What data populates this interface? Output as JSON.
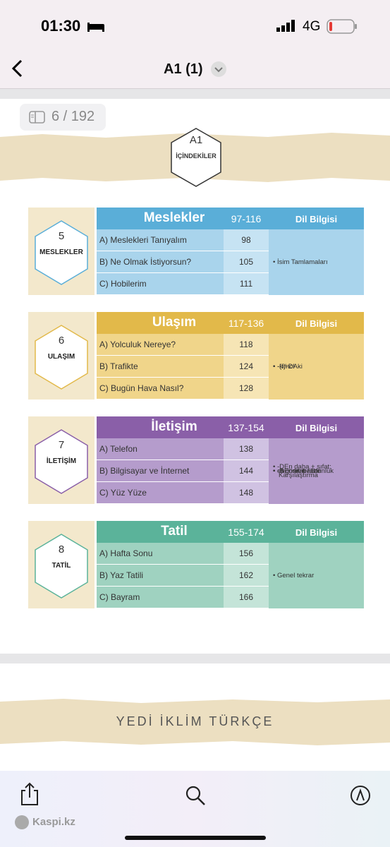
{
  "status_bar": {
    "time": "01:30",
    "network": "4G"
  },
  "nav": {
    "title": "A1 (1)"
  },
  "page_counter": "6 / 192",
  "header": {
    "level": "A1",
    "title": "İÇİNDEKİLER"
  },
  "units": [
    {
      "number": "5",
      "name": "MESLEKLER",
      "title": "Meslekler",
      "pages": "97-116",
      "grammar_title": "Dil Bilgisi",
      "lessons": [
        {
          "name": "A) Meslekleri Tanıyalım",
          "page": "98"
        },
        {
          "name": "B) Ne Olmak İstiyorsun?",
          "page": "105"
        },
        {
          "name": "C) Hobilerim",
          "page": "111"
        }
      ],
      "grammar": [
        "İsim Tamlamaları"
      ]
    },
    {
      "number": "6",
      "name": "ULAŞIM",
      "title": "Ulaşım",
      "pages": "117-136",
      "grammar_title": "Dil Bilgisi",
      "lessons": [
        {
          "name": "A) Yolculuk Nereye?",
          "page": "118"
        },
        {
          "name": "B) Trafikte",
          "page": "124"
        },
        {
          "name": "C) Bugün Hava Nasıl?",
          "page": "128"
        }
      ],
      "grammar": [
        "-ki/-DAki",
        "-(I)ncI"
      ]
    },
    {
      "number": "7",
      "name": "İLETİŞİM",
      "title": "İletişim",
      "pages": "137-154",
      "grammar_title": "Dil Bilgisi",
      "lessons": [
        {
          "name": "A) Telefon",
          "page": "138"
        },
        {
          "name": "B) Bilgisayar ve İnternet",
          "page": "144"
        },
        {
          "name": "C) Yüz Yüze",
          "page": "148"
        }
      ],
      "grammar": [
        "-A göre, bence",
        "-DEn daha + sıfat: Karşılaştırma",
        "en + sıfat: üstünlük",
        "-DEn beri / DIr"
      ]
    },
    {
      "number": "8",
      "name": "TATİL",
      "title": "Tatil",
      "pages": "155-174",
      "grammar_title": "Dil Bilgisi",
      "lessons": [
        {
          "name": "A) Hafta Sonu",
          "page": "156"
        },
        {
          "name": "B) Yaz Tatili",
          "page": "162"
        },
        {
          "name": "C) Bayram",
          "page": "166"
        }
      ],
      "grammar": [
        "Genel tekrar"
      ]
    }
  ],
  "footer": {
    "brand": "YEDİ İKLİM TÜRKÇE"
  },
  "watermark": "Kaspi.kz"
}
